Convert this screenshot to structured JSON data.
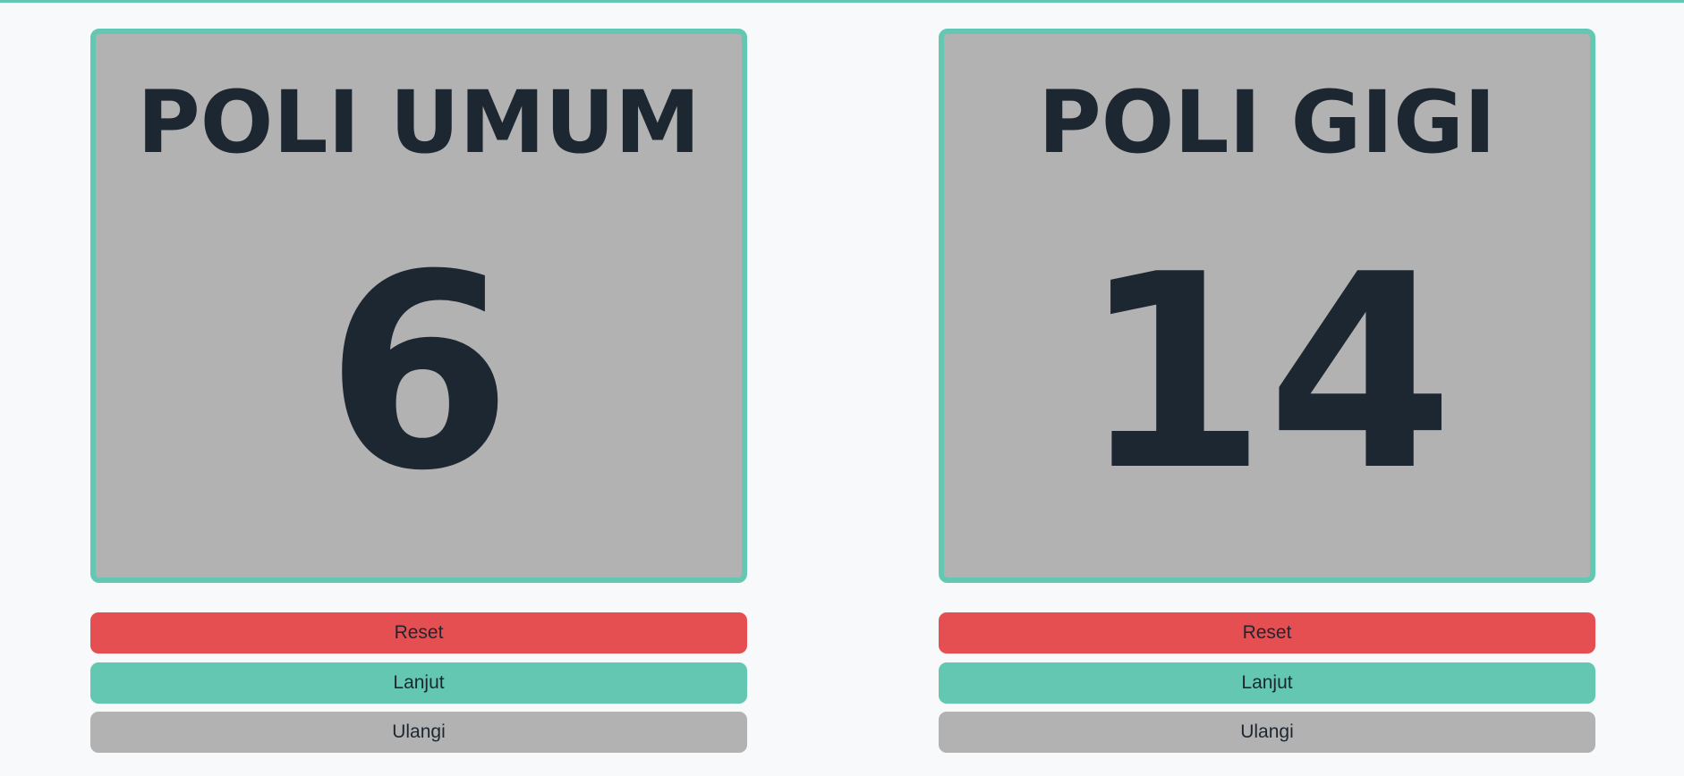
{
  "panels": [
    {
      "title": "POLI UMUM",
      "number": "6",
      "buttons": {
        "reset": "Reset",
        "next": "Lanjut",
        "repeat": "Ulangi"
      }
    },
    {
      "title": "POLI GIGI",
      "number": "14",
      "buttons": {
        "reset": "Reset",
        "next": "Lanjut",
        "repeat": "Ulangi"
      }
    }
  ],
  "colors": {
    "accent": "#63c7b2",
    "danger": "#e54f52",
    "neutral": "#b2b2b2",
    "text": "#1d2731",
    "background": "#f8f9fa"
  }
}
